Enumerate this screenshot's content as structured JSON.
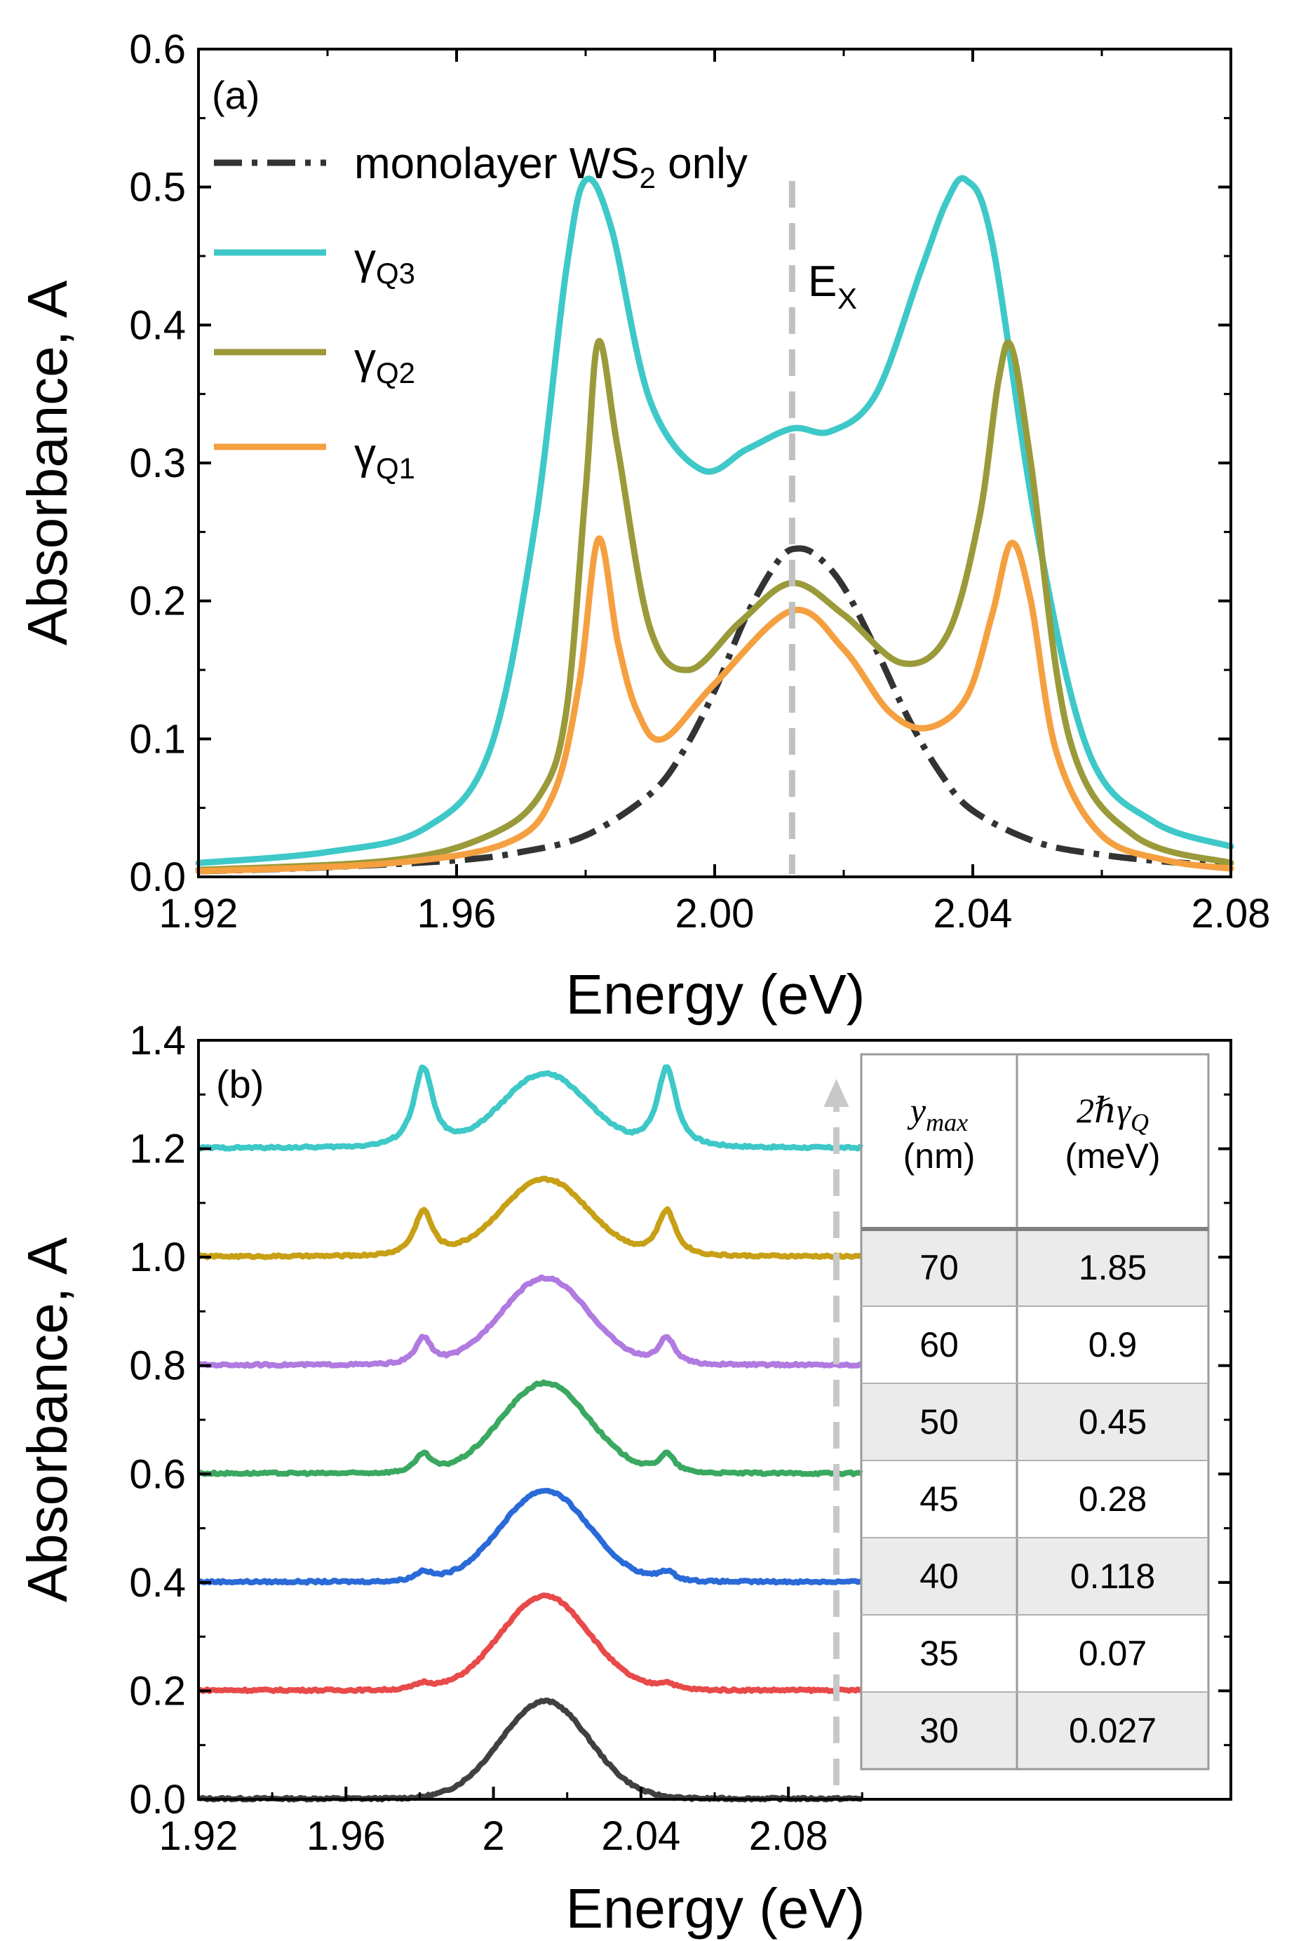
{
  "chart_data": [
    {
      "panel": "a",
      "type": "line",
      "panel_label": "(a)",
      "xlabel": "Energy (eV)",
      "ylabel": "Absorbance, A",
      "xlim": [
        1.92,
        2.08
      ],
      "ylim": [
        0.0,
        0.6
      ],
      "xticks": [
        "1.92",
        "1.96",
        "2.00",
        "2.04",
        "2.08"
      ],
      "yticks": [
        "0.0",
        "0.1",
        "0.2",
        "0.3",
        "0.4",
        "0.5",
        "0.6"
      ],
      "legend_position": "top-left",
      "annotation": {
        "text": "E",
        "subscript": "X",
        "x": 2.012
      },
      "series": [
        {
          "name": "monolayer WS2 only",
          "legend_main": "monolayer WS",
          "legend_sub": "2",
          "legend_tail": " only",
          "color": "#333333",
          "style": "dashdot",
          "x": [
            1.92,
            1.94,
            1.96,
            1.97,
            1.98,
            1.99,
            1.995,
            2.0,
            2.005,
            2.01,
            2.013,
            2.016,
            2.02,
            2.025,
            2.03,
            2.035,
            2.04,
            2.05,
            2.06,
            2.07,
            2.08
          ],
          "y": [
            0.004,
            0.007,
            0.012,
            0.018,
            0.03,
            0.06,
            0.09,
            0.135,
            0.19,
            0.23,
            0.238,
            0.232,
            0.21,
            0.165,
            0.115,
            0.075,
            0.048,
            0.025,
            0.016,
            0.011,
            0.008
          ]
        },
        {
          "name": "γQ3",
          "legend_main": "γ",
          "legend_sub": "Q3",
          "color": "#3ec8c8",
          "style": "solid",
          "x": [
            1.92,
            1.94,
            1.955,
            1.965,
            1.972,
            1.977,
            1.98,
            1.984,
            1.99,
            1.998,
            2.005,
            2.012,
            2.018,
            2.025,
            2.032,
            2.036,
            2.039,
            2.043,
            2.05,
            2.058,
            2.068,
            2.08
          ],
          "y": [
            0.01,
            0.018,
            0.035,
            0.09,
            0.25,
            0.44,
            0.505,
            0.47,
            0.345,
            0.295,
            0.31,
            0.325,
            0.323,
            0.35,
            0.44,
            0.49,
            0.505,
            0.46,
            0.25,
            0.09,
            0.04,
            0.022
          ]
        },
        {
          "name": "γQ2",
          "legend_main": "γ",
          "legend_sub": "Q2",
          "color": "#9a9a3a",
          "style": "solid",
          "x": [
            1.92,
            1.95,
            1.965,
            1.973,
            1.977,
            1.98,
            1.982,
            1.985,
            1.99,
            1.996,
            2.004,
            2.012,
            2.02,
            2.029,
            2.036,
            2.041,
            2.044,
            2.046,
            2.049,
            2.055,
            2.065,
            2.08
          ],
          "y": [
            0.005,
            0.012,
            0.03,
            0.06,
            0.12,
            0.28,
            0.388,
            0.31,
            0.18,
            0.15,
            0.185,
            0.213,
            0.19,
            0.155,
            0.175,
            0.26,
            0.36,
            0.384,
            0.3,
            0.1,
            0.03,
            0.01
          ]
        },
        {
          "name": "γQ1",
          "legend_main": "γ",
          "legend_sub": "Q1",
          "color": "#f5a040",
          "style": "solid",
          "x": [
            1.92,
            1.95,
            1.968,
            1.975,
            1.979,
            1.982,
            1.985,
            1.988,
            1.992,
            2.0,
            2.012,
            2.02,
            2.027,
            2.033,
            2.039,
            2.043,
            2.046,
            2.049,
            2.053,
            2.06,
            2.07,
            2.08
          ],
          "y": [
            0.004,
            0.01,
            0.025,
            0.06,
            0.14,
            0.245,
            0.17,
            0.12,
            0.1,
            0.14,
            0.193,
            0.165,
            0.12,
            0.108,
            0.13,
            0.19,
            0.242,
            0.2,
            0.09,
            0.03,
            0.012,
            0.006
          ]
        }
      ]
    },
    {
      "panel": "b",
      "type": "line",
      "panel_label": "(b)",
      "xlabel": "Energy (eV)",
      "ylabel": "Absorbance, A",
      "xlim": [
        1.92,
        2.2
      ],
      "ylim": [
        0.0,
        1.4
      ],
      "xticks": [
        "1.92",
        "1.96",
        "2",
        "2.04",
        "2.08"
      ],
      "yticks": [
        "0.0",
        "0.2",
        "0.4",
        "0.6",
        "0.8",
        "1.0",
        "1.2",
        "1.4"
      ],
      "arrow_x": 2.093,
      "series": [
        {
          "offset": 0.0,
          "color": "#404040",
          "peak": 0.18,
          "side": 0.0,
          "sideWidth": 0.003
        },
        {
          "offset": 0.2,
          "color": "#e84a4a",
          "peak": 0.175,
          "side": 0.012,
          "sideWidth": 0.003
        },
        {
          "offset": 0.4,
          "color": "#2a6ad8",
          "peak": 0.17,
          "side": 0.018,
          "sideWidth": 0.0028
        },
        {
          "offset": 0.6,
          "color": "#3aa860",
          "peak": 0.17,
          "side": 0.035,
          "sideWidth": 0.0026
        },
        {
          "offset": 0.8,
          "color": "#b07ae0",
          "peak": 0.165,
          "side": 0.05,
          "sideWidth": 0.0026
        },
        {
          "offset": 1.0,
          "color": "#c8a016",
          "peak": 0.15,
          "side": 0.085,
          "sideWidth": 0.003
        },
        {
          "offset": 1.2,
          "color": "#3ec8c8",
          "peak": 0.15,
          "side": 0.15,
          "sideWidth": 0.0032
        }
      ],
      "table": {
        "headers": [
          {
            "main": "y",
            "sub": "max",
            "unit": "(nm)"
          },
          {
            "main": "2ℏγ",
            "sub": "Q",
            "unit": "(meV)"
          }
        ],
        "rows": [
          [
            "70",
            "1.85"
          ],
          [
            "60",
            "0.9"
          ],
          [
            "50",
            "0.45"
          ],
          [
            "45",
            "0.28"
          ],
          [
            "40",
            "0.118"
          ],
          [
            "35",
            "0.07"
          ],
          [
            "30",
            "0.027"
          ]
        ],
        "shaded_row_color": "#ebebeb"
      }
    }
  ]
}
